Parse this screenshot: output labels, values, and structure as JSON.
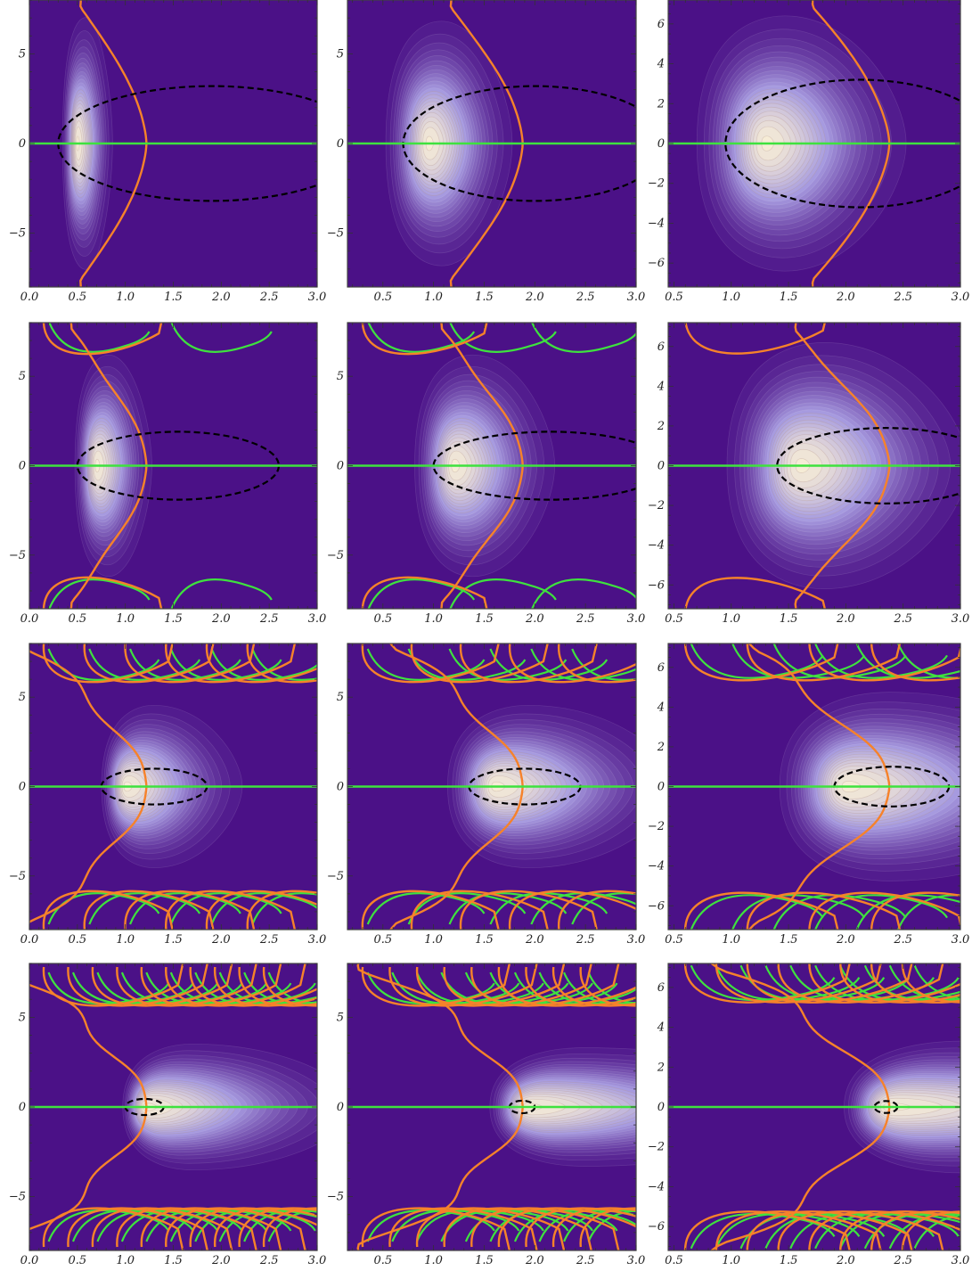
{
  "chart_data": {
    "type": "heatmap",
    "layout": {
      "rows": 4,
      "cols": 3
    },
    "colors": {
      "background": "#4b1187",
      "peak": "#f6ecd6",
      "orange_curve": "#f6822a",
      "green_curve": "#3ee23e",
      "dashed_curve": "#000000",
      "frame": "#444444"
    },
    "columns": [
      {
        "xlim": [
          0.0,
          3.0
        ],
        "ylim": [
          -8,
          8
        ],
        "x_ticks": [
          "0.0",
          "0.5",
          "1.0",
          "1.5",
          "2.0",
          "2.5",
          "3.0"
        ],
        "y_ticks": [
          "5",
          "0",
          "−5"
        ]
      },
      {
        "xlim": [
          0.15,
          3.0
        ],
        "ylim": [
          -8,
          8
        ],
        "x_ticks": [
          "0.5",
          "1.0",
          "1.5",
          "2.0",
          "2.5",
          "3.0"
        ],
        "y_ticks": [
          "5",
          "0",
          "−5"
        ]
      },
      {
        "xlim": [
          0.45,
          3.0
        ],
        "ylim": [
          -7.2,
          7.2
        ],
        "x_ticks": [
          "0.5",
          "1.0",
          "1.5",
          "2.0",
          "2.5",
          "3.0"
        ],
        "y_ticks": [
          "6",
          "4",
          "2",
          "0",
          "−2",
          "−4",
          "−6"
        ]
      }
    ],
    "panels": [
      {
        "row": 0,
        "col": 0,
        "peak": [
          0.5,
          0.0
        ],
        "spread": [
          0.12,
          3.4
        ],
        "tail": 0.1,
        "orange_x": 1.22,
        "orange_wave": 0.05,
        "orange_period": 8,
        "ellipse": [
          0.3,
          3.5,
          3.2
        ],
        "fringes": 0,
        "fringe_tilt": 0.0,
        "loops": 0,
        "loop_y": 7.2
      },
      {
        "row": 0,
        "col": 1,
        "peak": [
          0.95,
          0.0
        ],
        "spread": [
          0.28,
          3.3
        ],
        "tail": 0.15,
        "orange_x": 1.88,
        "orange_wave": 0.07,
        "orange_period": 8,
        "ellipse": [
          0.7,
          3.3,
          3.2
        ],
        "fringes": 0,
        "fringe_tilt": 0.0,
        "loops": 0,
        "loop_y": 7.2
      },
      {
        "row": 0,
        "col": 2,
        "peak": [
          1.3,
          0.0
        ],
        "spread": [
          0.4,
          3.1
        ],
        "tail": 0.2,
        "orange_x": 2.38,
        "orange_wave": 0.03,
        "orange_period": 9,
        "ellipse": [
          0.95,
          3.3,
          3.2
        ],
        "fringes": 0,
        "fringe_tilt": 0.0,
        "loops": 0,
        "loop_y": 6.6
      },
      {
        "row": 1,
        "col": 0,
        "peak": [
          0.7,
          0.0
        ],
        "spread": [
          0.18,
          3.0
        ],
        "tail": 0.15,
        "orange_x": 1.22,
        "orange_wave": 0.18,
        "orange_period": 6,
        "ellipse": [
          0.5,
          2.6,
          1.9
        ],
        "fringes": 2,
        "fringe_tilt": 0.25,
        "loops": 1,
        "loop_y": 7.2
      },
      {
        "row": 1,
        "col": 1,
        "peak": [
          1.2,
          0.0
        ],
        "spread": [
          0.3,
          3.0
        ],
        "tail": 0.22,
        "orange_x": 1.88,
        "orange_wave": 0.2,
        "orange_period": 6,
        "ellipse": [
          1.0,
          3.3,
          1.9
        ],
        "fringes": 3,
        "fringe_tilt": 0.25,
        "loops": 1,
        "loop_y": 7.2
      },
      {
        "row": 1,
        "col": 2,
        "peak": [
          1.6,
          0.0
        ],
        "spread": [
          0.45,
          3.0
        ],
        "tail": 0.25,
        "orange_x": 2.38,
        "orange_wave": 0.22,
        "orange_period": 6,
        "ellipse": [
          1.4,
          3.3,
          1.9
        ],
        "fringes": 0,
        "fringe_tilt": 0.25,
        "loops": 1,
        "loop_y": 6.6
      },
      {
        "row": 2,
        "col": 0,
        "peak": [
          1.0,
          0.0
        ],
        "spread": [
          0.3,
          2.2
        ],
        "tail": 0.35,
        "orange_x": 1.22,
        "orange_wave": 0.55,
        "orange_period": 5,
        "ellipse": [
          0.75,
          1.85,
          1.0
        ],
        "fringes": 6,
        "fringe_tilt": 0.35,
        "loops": 6,
        "loop_y": 6.8
      },
      {
        "row": 2,
        "col": 1,
        "peak": [
          1.6,
          0.0
        ],
        "spread": [
          0.45,
          2.2
        ],
        "tail": 0.4,
        "orange_x": 1.88,
        "orange_wave": 0.55,
        "orange_period": 5,
        "ellipse": [
          1.35,
          2.45,
          1.0
        ],
        "fringes": 6,
        "fringe_tilt": 0.35,
        "loops": 5,
        "loop_y": 6.8
      },
      {
        "row": 2,
        "col": 2,
        "peak": [
          2.0,
          0.0
        ],
        "spread": [
          0.55,
          2.3
        ],
        "tail": 0.45,
        "orange_x": 2.38,
        "orange_wave": 0.6,
        "orange_period": 5,
        "ellipse": [
          1.9,
          2.9,
          1.0
        ],
        "fringes": 6,
        "fringe_tilt": 0.35,
        "loops": 4,
        "loop_y": 6.3
      },
      {
        "row": 3,
        "col": 0,
        "peak": [
          1.2,
          0.0
        ],
        "spread": [
          0.45,
          1.7
        ],
        "tail": 0.6,
        "orange_x": 1.22,
        "orange_wave": 0.75,
        "orange_period": 4.5,
        "ellipse": [
          1.0,
          1.4,
          0.45
        ],
        "fringes": 10,
        "fringe_tilt": 0.45,
        "loops": 10,
        "loop_y": 6.6
      },
      {
        "row": 3,
        "col": 1,
        "peak": [
          1.9,
          0.0
        ],
        "spread": [
          0.6,
          1.6
        ],
        "tail": 0.7,
        "orange_x": 1.88,
        "orange_wave": 0.75,
        "orange_period": 4.5,
        "ellipse": [
          1.75,
          2.0,
          0.35
        ],
        "fringes": 10,
        "fringe_tilt": 0.45,
        "loops": 9,
        "loop_y": 6.6
      },
      {
        "row": 3,
        "col": 2,
        "peak": [
          2.35,
          0.0
        ],
        "spread": [
          0.7,
          1.6
        ],
        "tail": 0.8,
        "orange_x": 2.38,
        "orange_wave": 0.75,
        "orange_period": 4.5,
        "ellipse": [
          2.25,
          2.45,
          0.3
        ],
        "fringes": 10,
        "fringe_tilt": 0.45,
        "loops": 8,
        "loop_y": 6.2
      }
    ]
  }
}
